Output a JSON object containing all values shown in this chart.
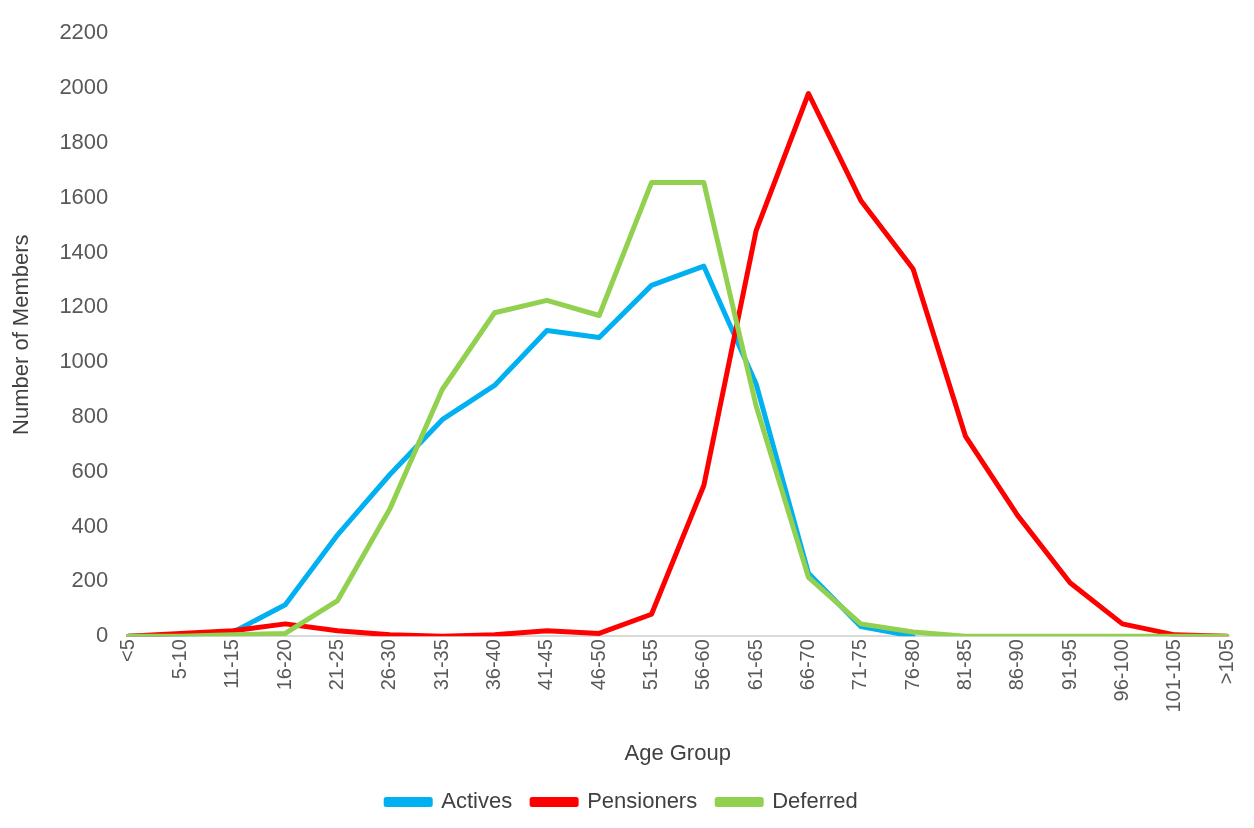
{
  "chart_data": {
    "type": "line",
    "xlabel": "Age Group",
    "ylabel": "Number of Members",
    "categories": [
      "<5",
      "5-10",
      "11-15",
      "16-20",
      "21-25",
      "26-30",
      "31-35",
      "36-40",
      "41-45",
      "46-50",
      "51-55",
      "56-60",
      "61-65",
      "66-70",
      "71-75",
      "76-80",
      "81-85",
      "86-90",
      "91-95",
      "96-100",
      "101-105",
      ">105"
    ],
    "series": [
      {
        "name": "Actives",
        "color": "#00b0f0",
        "values": [
          0,
          5,
          15,
          115,
          370,
          590,
          790,
          915,
          1115,
          1090,
          1280,
          1350,
          920,
          230,
          35,
          0,
          null,
          null,
          null,
          null,
          null,
          null
        ]
      },
      {
        "name": "Pensioners",
        "color": "#ff0000",
        "values": [
          0,
          10,
          20,
          45,
          20,
          5,
          0,
          5,
          20,
          10,
          80,
          550,
          1480,
          1980,
          1590,
          1340,
          730,
          440,
          195,
          45,
          5,
          0
        ]
      },
      {
        "name": "Deferred",
        "color": "#92d050",
        "values": [
          0,
          0,
          5,
          10,
          130,
          465,
          900,
          1180,
          1225,
          1170,
          1655,
          1655,
          840,
          215,
          45,
          15,
          0,
          0,
          0,
          0,
          0,
          0
        ]
      }
    ],
    "ylim": [
      0,
      2200
    ],
    "yticks": [
      0,
      200,
      400,
      600,
      800,
      1000,
      1200,
      1400,
      1600,
      1800,
      2000,
      2200
    ],
    "grid": false,
    "legend": "bottom",
    "marker": "none",
    "line_style": "solid"
  }
}
